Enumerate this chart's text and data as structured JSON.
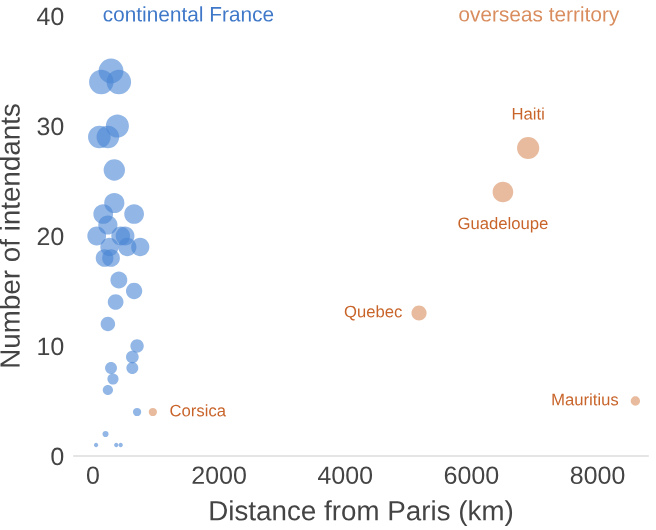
{
  "chart_data": {
    "type": "bubble",
    "xlabel": "Distance from Paris (km)",
    "xlim": [
      -300,
      8800
    ],
    "ylabel": "Number of intendants",
    "ylim": [
      0,
      40
    ],
    "xticks": [
      0,
      2000,
      4000,
      6000,
      8000
    ],
    "yticks": [
      0,
      10,
      20,
      30,
      40
    ],
    "grid": false,
    "legend": false,
    "series": [
      {
        "name": "continental France",
        "color": "#4a86d4",
        "x": [
          287,
          133,
          411,
          102,
          237,
          388,
          339,
          339,
          163,
          653,
          237,
          60,
          440,
          510,
          262,
          750,
          545,
          185,
          287,
          411,
          360,
          653,
          237,
          700,
          625,
          625,
          287,
          318,
          237,
          700,
          200,
          50,
          370,
          440
        ],
        "values": [
          35,
          34,
          34,
          29,
          29,
          30,
          26,
          23,
          22,
          22,
          21,
          20,
          20,
          20,
          19,
          19,
          19,
          18,
          18,
          16,
          14,
          15,
          12,
          10,
          9,
          8,
          8,
          7,
          6,
          4,
          2,
          1,
          1,
          1
        ],
        "sizes": [
          1,
          0.97,
          0.97,
          0.83,
          0.83,
          0.86,
          0.74,
          0.66,
          0.63,
          0.63,
          0.6,
          0.57,
          0.57,
          0.57,
          0.54,
          0.54,
          0.54,
          0.51,
          0.51,
          0.46,
          0.4,
          0.43,
          0.34,
          0.29,
          0.26,
          0.23,
          0.23,
          0.2,
          0.17,
          0.11,
          0.06,
          0.03,
          0.03,
          0.03
        ]
      },
      {
        "name": "overseas territory",
        "color": "#d98d5e",
        "x": [
          950,
          6900,
          6500,
          5170,
          8600
        ],
        "values": [
          4,
          28,
          24,
          13,
          5
        ],
        "sizes": [
          0.11,
          0.8,
          0.69,
          0.37,
          0.14
        ]
      }
    ],
    "annotations": [
      {
        "text": "Corsica",
        "x": 950,
        "y": 4
      },
      {
        "text": "Haiti",
        "x": 6900,
        "y": 28
      },
      {
        "text": "Guadeloupe",
        "x": 6500,
        "y": 24
      },
      {
        "text": "Quebec",
        "x": 5170,
        "y": 13
      },
      {
        "text": "Mauritius",
        "x": 8600,
        "y": 5
      }
    ]
  }
}
